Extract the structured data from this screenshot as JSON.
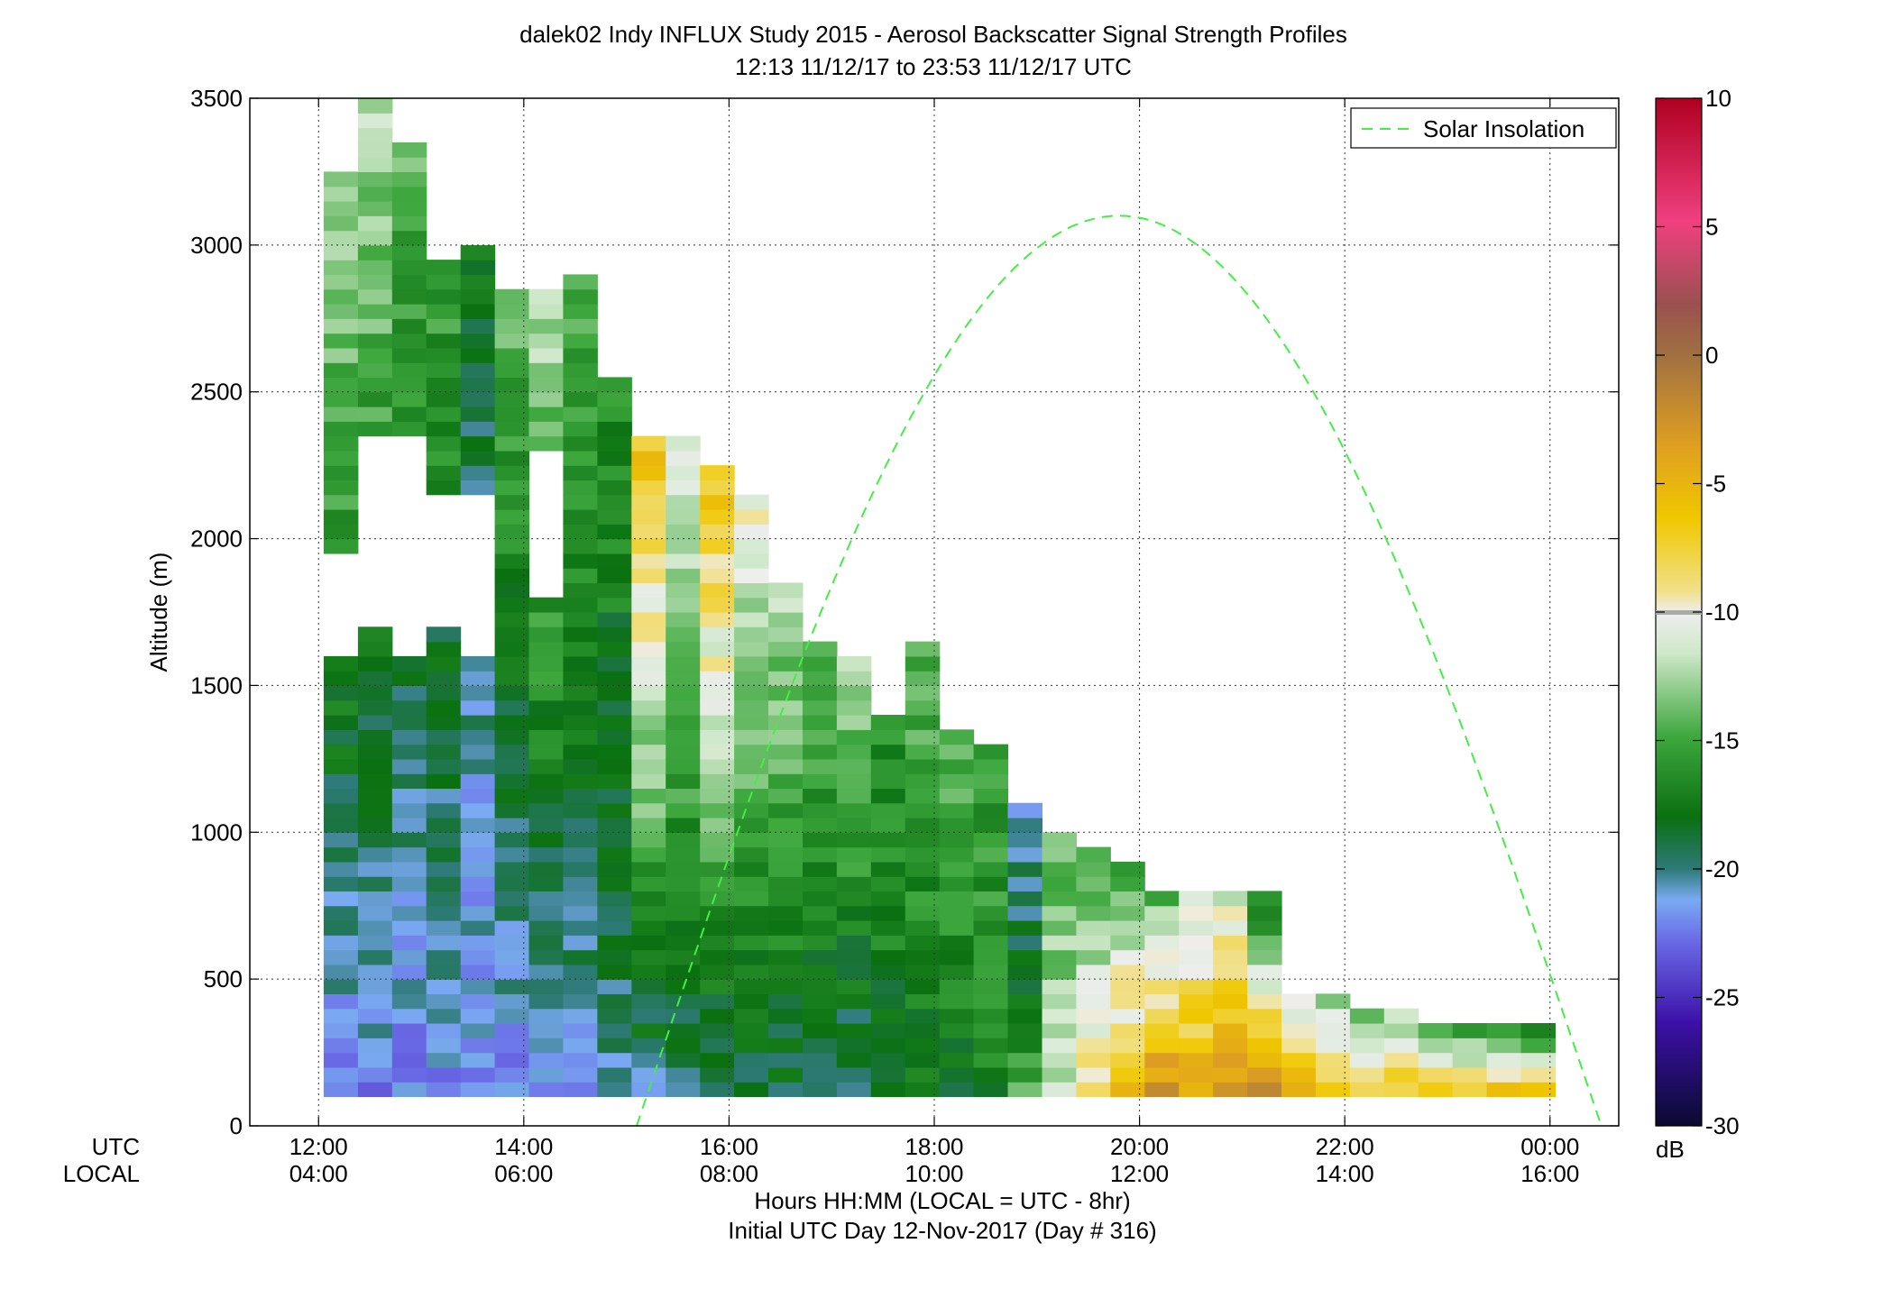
{
  "chart_data": {
    "type": "heatmap",
    "title": "dalek02 Indy INFLUX Study 2015 - Aerosol Backscatter Signal Strength Profiles",
    "subtitle": "12:13 11/12/17 to 23:53 11/12/17  UTC",
    "ylabel": "Altitude (m)",
    "xlabel": "Hours HH:MM  (LOCAL = UTC - 8hr)",
    "xlabel2": "Initial UTC Day 12-Nov-2017 (Day # 316)",
    "xaxis_row_labels": [
      "UTC",
      "LOCAL"
    ],
    "ylim": [
      0,
      3500
    ],
    "y_ticks": [
      0,
      500,
      1000,
      1500,
      2000,
      2500,
      3000,
      3500
    ],
    "x_range_hours": [
      11.33,
      24.67
    ],
    "x_ticks": [
      {
        "utc": "12:00",
        "local": "04:00",
        "hour": 12
      },
      {
        "utc": "14:00",
        "local": "06:00",
        "hour": 14
      },
      {
        "utc": "16:00",
        "local": "08:00",
        "hour": 16
      },
      {
        "utc": "18:00",
        "local": "10:00",
        "hour": 18
      },
      {
        "utc": "20:00",
        "local": "12:00",
        "hour": 20
      },
      {
        "utc": "22:00",
        "local": "14:00",
        "hour": 22
      },
      {
        "utc": "00:00",
        "local": "16:00",
        "hour": 24
      }
    ],
    "grid": true,
    "legend": {
      "position": "top-right",
      "entries": [
        {
          "name": "Solar Insolation",
          "color": "#44ee44",
          "style": "dashed"
        }
      ]
    },
    "colorbar": {
      "label": "dB",
      "range": [
        -30,
        10
      ],
      "ticks": [
        10,
        5,
        0,
        -5,
        -10,
        -15,
        -20,
        -25,
        -30
      ]
    },
    "profile_times_hours": [
      12.2167,
      12.55,
      12.8833,
      13.2167,
      13.55,
      13.8833,
      14.2167,
      14.55,
      14.8833,
      15.2167,
      15.55,
      15.8833,
      16.2167,
      16.55,
      16.8833,
      17.2167,
      17.55,
      17.8833,
      18.2167,
      18.55,
      18.8833,
      19.2167,
      19.55,
      19.8833,
      20.2167,
      20.55,
      20.8833,
      21.2167,
      21.55,
      21.8833,
      22.2167,
      22.55,
      22.8833,
      23.2167,
      23.55,
      23.8833
    ],
    "profile_tops_m": [
      3250,
      3500,
      3350,
      2950,
      3000,
      2850,
      2850,
      2900,
      2550,
      2350,
      2350,
      2250,
      2150,
      1850,
      1650,
      1600,
      1400,
      1650,
      1350,
      1300,
      1100,
      1000,
      950,
      900,
      800,
      800,
      800,
      800,
      450,
      450,
      400,
      400,
      350,
      350,
      350,
      350
    ],
    "gap_ranges": [
      {
        "time": 12.2167,
        "from_m": 1600,
        "to_m": 1950
      },
      {
        "time": 12.55,
        "from_m": 1700,
        "to_m": 2350
      },
      {
        "time": 12.8833,
        "from_m": 1600,
        "to_m": 2350
      },
      {
        "time": 13.2167,
        "from_m": 1700,
        "to_m": 2150
      },
      {
        "time": 13.55,
        "from_m": 1600,
        "to_m": 2150
      },
      {
        "time": 14.2167,
        "from_m": 1800,
        "to_m": 2300
      }
    ],
    "surface_db": [
      -22,
      -22,
      -22,
      -22,
      -22,
      -22,
      -21,
      -21,
      -20,
      -20,
      -20,
      -20,
      -19,
      -19,
      -19,
      -20,
      -18,
      -18,
      -18,
      -17,
      -15,
      -12,
      -9,
      -6,
      -3,
      -5,
      -3,
      -3,
      -5,
      -6,
      -7,
      -7,
      -7,
      -7,
      -7,
      -7
    ],
    "top_db": [
      -12,
      -12,
      -14,
      -15,
      -18,
      -14,
      -12,
      -14,
      -16,
      -6,
      -10,
      -6,
      -10,
      -12,
      -14,
      -12,
      -16,
      -14,
      -14,
      -15,
      -22,
      -14,
      -15,
      -15,
      -15,
      -12,
      -12,
      -18,
      -12,
      -14,
      -14,
      -14,
      -18,
      -18,
      -18,
      -18
    ],
    "solar_insolation_curve": {
      "start_hour": 15.1,
      "peak_hour": 19.8,
      "end_hour": 24.5,
      "peak_altitude_m": 3100
    }
  }
}
